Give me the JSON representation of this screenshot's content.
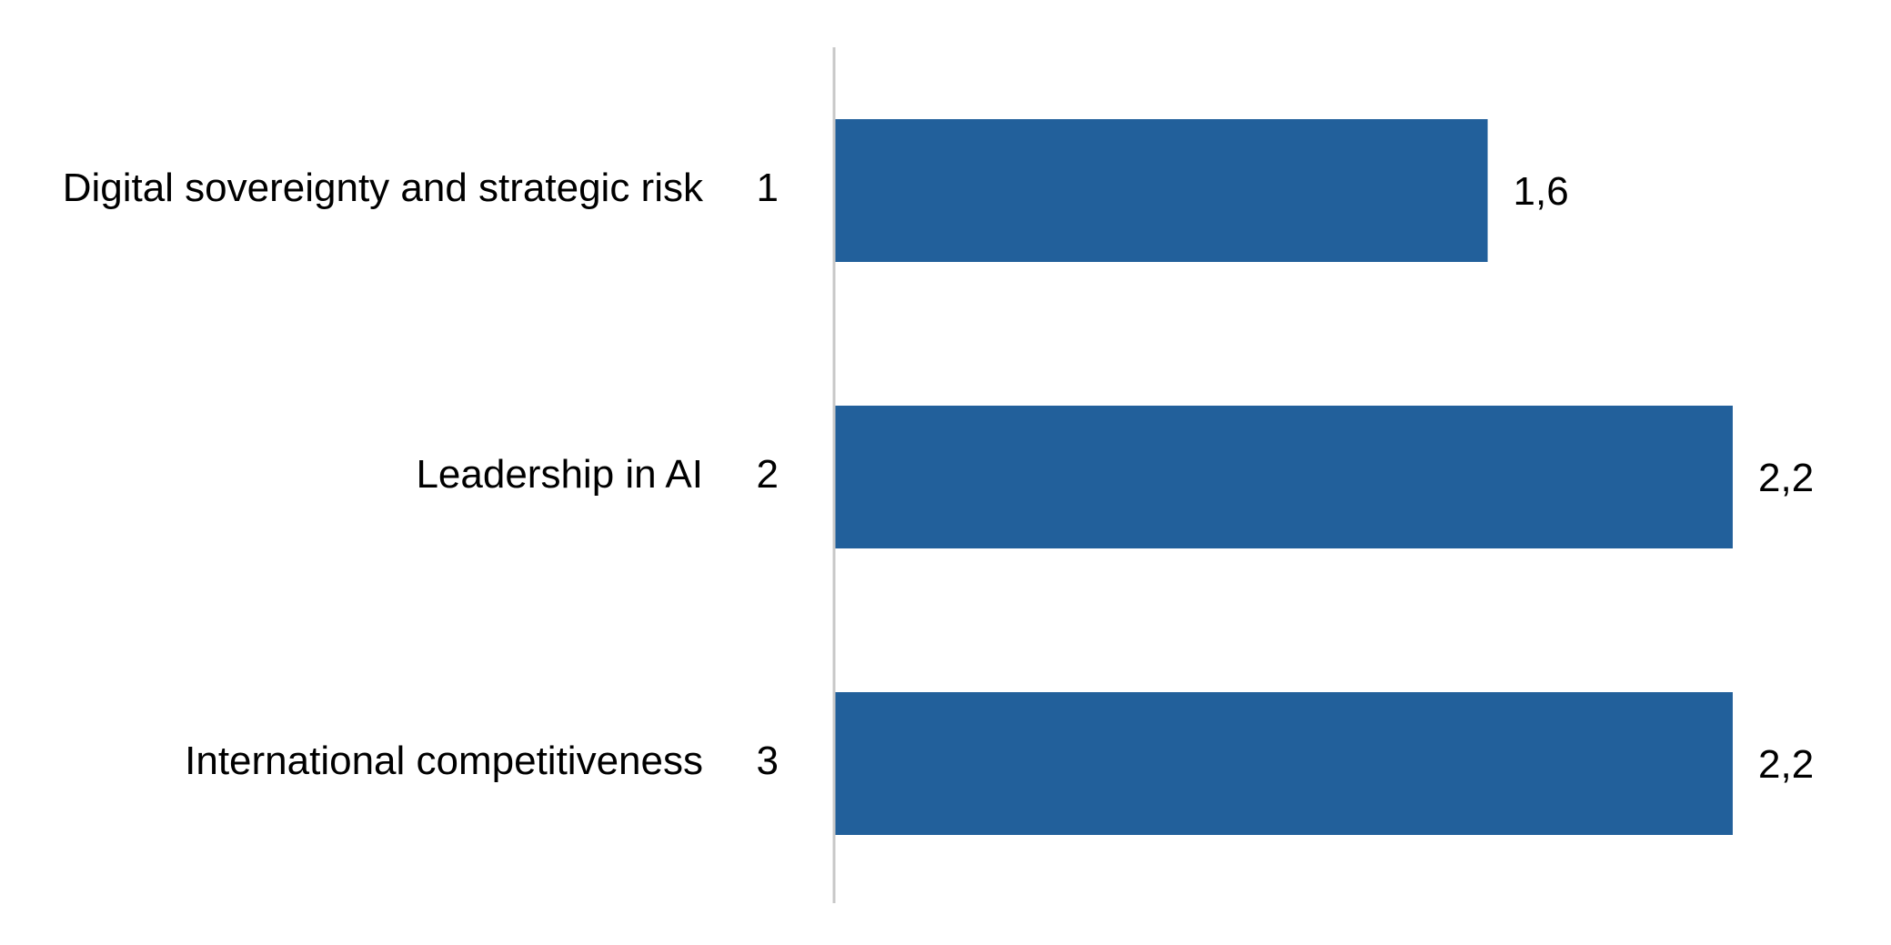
{
  "chart_data": {
    "type": "bar",
    "orientation": "horizontal",
    "categories": [
      "Digital sovereignty and strategic risk",
      "Leadership in AI",
      "International competitiveness"
    ],
    "ranks": [
      "1",
      "2",
      "3"
    ],
    "values": [
      1.6,
      2.2,
      2.2
    ],
    "value_labels": [
      "1,6",
      "2,2",
      "2,2"
    ],
    "title": "",
    "xlabel": "",
    "ylabel": "",
    "xlim": [
      0,
      2.2
    ],
    "grid": false,
    "legend": "none",
    "bar_color": "#22609B",
    "axis_color": "#C8C8C8"
  }
}
